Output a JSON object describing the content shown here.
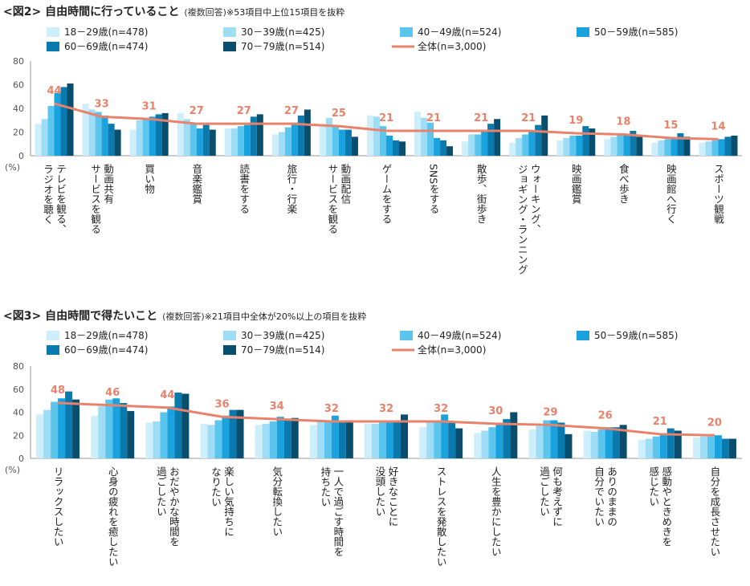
{
  "colors": {
    "series": [
      "#cdeefb",
      "#9fdcf6",
      "#5cc5ee",
      "#1aa2de",
      "#0a79ae",
      "#094e6c"
    ],
    "overall": "#e8826b"
  },
  "chart_data": [
    {
      "type": "bar",
      "title": "<図2> 自由時間に行っていること",
      "title_note": "(複数回答)",
      "subtitle": "※53項目中上位15項目を抜粋",
      "ylabel": "(%)",
      "ylim": [
        0,
        80
      ],
      "yticks": [
        "0",
        "20",
        "40",
        "60",
        "80"
      ],
      "grid": false,
      "legend_position": "top",
      "categories": [
        [
          "テレビを観る、",
          "ラジオを聴く"
        ],
        [
          "動画共有",
          "サービスを観る"
        ],
        [
          "買い物"
        ],
        [
          "音楽鑑賞"
        ],
        [
          "読書をする"
        ],
        [
          "旅行・行楽"
        ],
        [
          "動画配信",
          "サービスを観る"
        ],
        [
          "ゲームをする"
        ],
        [
          "SNSをする"
        ],
        [
          "散歩、街歩き"
        ],
        [
          "ウォーキング、",
          "ジョギング・ランニング"
        ],
        [
          "映画鑑賞"
        ],
        [
          "食べ歩き"
        ],
        [
          "映画館へ行く"
        ],
        [
          "スポーツ観戦"
        ]
      ],
      "series": [
        {
          "name": "18－29歳(n=478)",
          "values": [
            27,
            44,
            22,
            36,
            23,
            18,
            25,
            34,
            37,
            12,
            11,
            13,
            14,
            11,
            11
          ]
        },
        {
          "name": "30－39歳(n=425)",
          "values": [
            31,
            39,
            30,
            31,
            23,
            20,
            32,
            33,
            32,
            18,
            15,
            15,
            16,
            13,
            12
          ]
        },
        {
          "name": "40－49歳(n=524)",
          "values": [
            42,
            37,
            31,
            27,
            25,
            24,
            25,
            25,
            28,
            18,
            18,
            17,
            19,
            14,
            13
          ]
        },
        {
          "name": "50－59歳(n=585)",
          "values": [
            53,
            34,
            33,
            23,
            26,
            28,
            22,
            17,
            15,
            20,
            20,
            17,
            18,
            14,
            14
          ]
        },
        {
          "name": "60－69歳(n=474)",
          "values": [
            58,
            27,
            35,
            26,
            33,
            34,
            22,
            13,
            13,
            27,
            26,
            25,
            21,
            19,
            16
          ]
        },
        {
          "name": "70－79歳(n=514)",
          "values": [
            61,
            22,
            36,
            22,
            35,
            39,
            16,
            12,
            8,
            31,
            34,
            23,
            16,
            16,
            17
          ]
        }
      ],
      "overall": {
        "name": "全体(n=3,000)",
        "values": [
          44,
          33,
          31,
          27,
          27,
          27,
          25,
          21,
          21,
          21,
          21,
          19,
          18,
          15,
          14
        ]
      }
    },
    {
      "type": "bar",
      "title": "<図3> 自由時間で得たいこと",
      "title_note": "(複数回答)",
      "subtitle": "※21項目中全体が20%以上の項目を抜粋",
      "ylabel": "(%)",
      "ylim": [
        0,
        80
      ],
      "yticks": [
        "0",
        "20",
        "40",
        "60",
        "80"
      ],
      "grid": false,
      "legend_position": "top",
      "categories": [
        [
          "リラックスしたい"
        ],
        [
          "心身の疲れを癒したい"
        ],
        [
          "おだやかな時間を",
          "過ごしたい"
        ],
        [
          "楽しい気持ちに",
          "なりたい"
        ],
        [
          "気分転換したい"
        ],
        [
          "一人で過ごす時間を",
          "持ちたい"
        ],
        [
          "好きなことに",
          "没頭したい"
        ],
        [
          "ストレスを発散したい"
        ],
        [
          "人生を豊かにしたい"
        ],
        [
          "何も考えずに",
          "過ごしたい"
        ],
        [
          "ありのままの",
          "自分でいたい"
        ],
        [
          "感動やときめきを",
          "感じたい"
        ],
        [
          "自分を成長させたい"
        ]
      ],
      "series": [
        {
          "name": "18－29歳(n=478)",
          "values": [
            38,
            37,
            31,
            30,
            29,
            29,
            30,
            27,
            22,
            25,
            24,
            16,
            18
          ]
        },
        {
          "name": "30－39歳(n=425)",
          "values": [
            42,
            45,
            32,
            29,
            30,
            32,
            30,
            32,
            24,
            28,
            23,
            17,
            19
          ]
        },
        {
          "name": "40－49歳(n=524)",
          "values": [
            49,
            51,
            40,
            33,
            32,
            33,
            31,
            33,
            27,
            33,
            25,
            19,
            19
          ]
        },
        {
          "name": "50－59歳(n=585)",
          "values": [
            52,
            52,
            45,
            37,
            36,
            37,
            33,
            38,
            29,
            33,
            27,
            21,
            20
          ]
        },
        {
          "name": "60－69歳(n=474)",
          "values": [
            58,
            48,
            57,
            42,
            34,
            33,
            33,
            32,
            34,
            31,
            27,
            26,
            17
          ]
        },
        {
          "name": "70－79歳(n=514)",
          "values": [
            51,
            41,
            56,
            42,
            35,
            31,
            38,
            26,
            40,
            21,
            29,
            24,
            17
          ]
        }
      ],
      "overall": {
        "name": "全体(n=3,000)",
        "values": [
          48,
          46,
          44,
          36,
          34,
          32,
          32,
          32,
          30,
          29,
          26,
          21,
          20
        ]
      }
    }
  ]
}
